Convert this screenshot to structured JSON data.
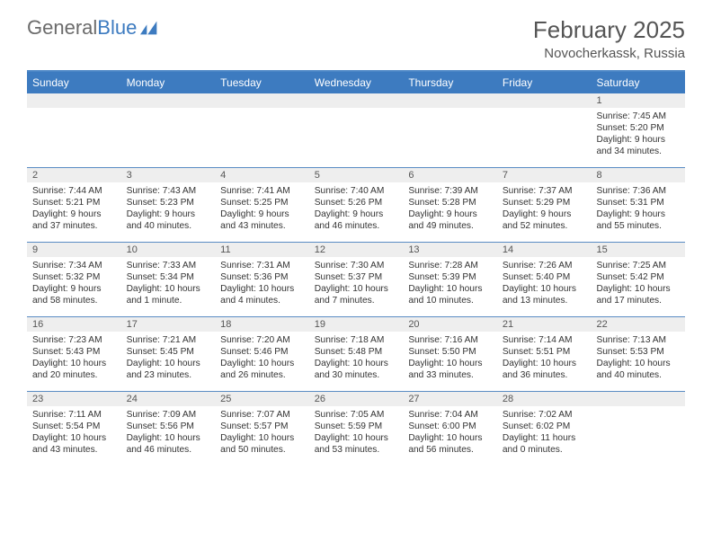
{
  "brand": {
    "part1": "General",
    "part2": "Blue"
  },
  "title": "February 2025",
  "location": "Novocherkassk, Russia",
  "colors": {
    "header_bar": "#3d7bc0",
    "row_divider": "#5a8cc4",
    "daynum_bg": "#eeeeee",
    "text": "#333333"
  },
  "weekdays": [
    "Sunday",
    "Monday",
    "Tuesday",
    "Wednesday",
    "Thursday",
    "Friday",
    "Saturday"
  ],
  "weeks": [
    [
      null,
      null,
      null,
      null,
      null,
      null,
      {
        "n": "1",
        "sr": "Sunrise: 7:45 AM",
        "ss": "Sunset: 5:20 PM",
        "dl": "Daylight: 9 hours and 34 minutes."
      }
    ],
    [
      {
        "n": "2",
        "sr": "Sunrise: 7:44 AM",
        "ss": "Sunset: 5:21 PM",
        "dl": "Daylight: 9 hours and 37 minutes."
      },
      {
        "n": "3",
        "sr": "Sunrise: 7:43 AM",
        "ss": "Sunset: 5:23 PM",
        "dl": "Daylight: 9 hours and 40 minutes."
      },
      {
        "n": "4",
        "sr": "Sunrise: 7:41 AM",
        "ss": "Sunset: 5:25 PM",
        "dl": "Daylight: 9 hours and 43 minutes."
      },
      {
        "n": "5",
        "sr": "Sunrise: 7:40 AM",
        "ss": "Sunset: 5:26 PM",
        "dl": "Daylight: 9 hours and 46 minutes."
      },
      {
        "n": "6",
        "sr": "Sunrise: 7:39 AM",
        "ss": "Sunset: 5:28 PM",
        "dl": "Daylight: 9 hours and 49 minutes."
      },
      {
        "n": "7",
        "sr": "Sunrise: 7:37 AM",
        "ss": "Sunset: 5:29 PM",
        "dl": "Daylight: 9 hours and 52 minutes."
      },
      {
        "n": "8",
        "sr": "Sunrise: 7:36 AM",
        "ss": "Sunset: 5:31 PM",
        "dl": "Daylight: 9 hours and 55 minutes."
      }
    ],
    [
      {
        "n": "9",
        "sr": "Sunrise: 7:34 AM",
        "ss": "Sunset: 5:32 PM",
        "dl": "Daylight: 9 hours and 58 minutes."
      },
      {
        "n": "10",
        "sr": "Sunrise: 7:33 AM",
        "ss": "Sunset: 5:34 PM",
        "dl": "Daylight: 10 hours and 1 minute."
      },
      {
        "n": "11",
        "sr": "Sunrise: 7:31 AM",
        "ss": "Sunset: 5:36 PM",
        "dl": "Daylight: 10 hours and 4 minutes."
      },
      {
        "n": "12",
        "sr": "Sunrise: 7:30 AM",
        "ss": "Sunset: 5:37 PM",
        "dl": "Daylight: 10 hours and 7 minutes."
      },
      {
        "n": "13",
        "sr": "Sunrise: 7:28 AM",
        "ss": "Sunset: 5:39 PM",
        "dl": "Daylight: 10 hours and 10 minutes."
      },
      {
        "n": "14",
        "sr": "Sunrise: 7:26 AM",
        "ss": "Sunset: 5:40 PM",
        "dl": "Daylight: 10 hours and 13 minutes."
      },
      {
        "n": "15",
        "sr": "Sunrise: 7:25 AM",
        "ss": "Sunset: 5:42 PM",
        "dl": "Daylight: 10 hours and 17 minutes."
      }
    ],
    [
      {
        "n": "16",
        "sr": "Sunrise: 7:23 AM",
        "ss": "Sunset: 5:43 PM",
        "dl": "Daylight: 10 hours and 20 minutes."
      },
      {
        "n": "17",
        "sr": "Sunrise: 7:21 AM",
        "ss": "Sunset: 5:45 PM",
        "dl": "Daylight: 10 hours and 23 minutes."
      },
      {
        "n": "18",
        "sr": "Sunrise: 7:20 AM",
        "ss": "Sunset: 5:46 PM",
        "dl": "Daylight: 10 hours and 26 minutes."
      },
      {
        "n": "19",
        "sr": "Sunrise: 7:18 AM",
        "ss": "Sunset: 5:48 PM",
        "dl": "Daylight: 10 hours and 30 minutes."
      },
      {
        "n": "20",
        "sr": "Sunrise: 7:16 AM",
        "ss": "Sunset: 5:50 PM",
        "dl": "Daylight: 10 hours and 33 minutes."
      },
      {
        "n": "21",
        "sr": "Sunrise: 7:14 AM",
        "ss": "Sunset: 5:51 PM",
        "dl": "Daylight: 10 hours and 36 minutes."
      },
      {
        "n": "22",
        "sr": "Sunrise: 7:13 AM",
        "ss": "Sunset: 5:53 PM",
        "dl": "Daylight: 10 hours and 40 minutes."
      }
    ],
    [
      {
        "n": "23",
        "sr": "Sunrise: 7:11 AM",
        "ss": "Sunset: 5:54 PM",
        "dl": "Daylight: 10 hours and 43 minutes."
      },
      {
        "n": "24",
        "sr": "Sunrise: 7:09 AM",
        "ss": "Sunset: 5:56 PM",
        "dl": "Daylight: 10 hours and 46 minutes."
      },
      {
        "n": "25",
        "sr": "Sunrise: 7:07 AM",
        "ss": "Sunset: 5:57 PM",
        "dl": "Daylight: 10 hours and 50 minutes."
      },
      {
        "n": "26",
        "sr": "Sunrise: 7:05 AM",
        "ss": "Sunset: 5:59 PM",
        "dl": "Daylight: 10 hours and 53 minutes."
      },
      {
        "n": "27",
        "sr": "Sunrise: 7:04 AM",
        "ss": "Sunset: 6:00 PM",
        "dl": "Daylight: 10 hours and 56 minutes."
      },
      {
        "n": "28",
        "sr": "Sunrise: 7:02 AM",
        "ss": "Sunset: 6:02 PM",
        "dl": "Daylight: 11 hours and 0 minutes."
      },
      null
    ]
  ]
}
